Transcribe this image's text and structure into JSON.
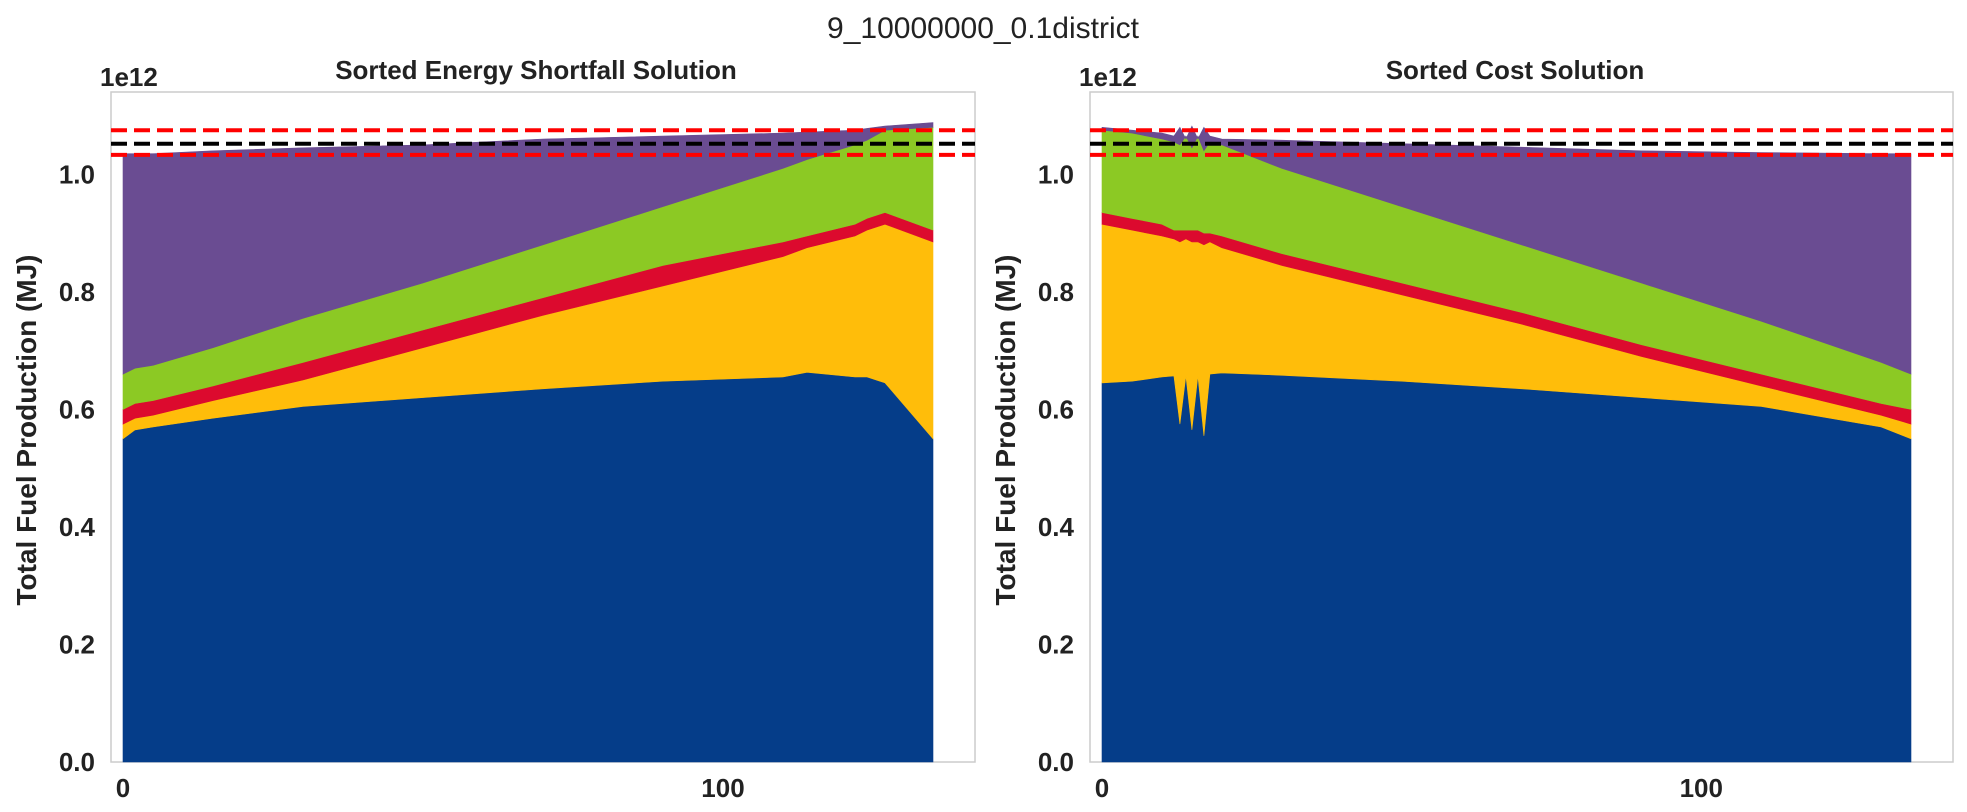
{
  "figure": {
    "suptitle": "9_10000000_0.1district"
  },
  "chart_data": [
    {
      "type": "area",
      "title": "Sorted Energy Shortfall Solution",
      "xlabel": "",
      "ylabel": "Total Fuel Production (MJ)",
      "y_offset_label": "1e12",
      "xlim": [
        -2,
        142
      ],
      "ylim": [
        0,
        1.14
      ],
      "xticks": [
        0,
        100
      ],
      "yticks": [
        0.0,
        0.2,
        0.4,
        0.6,
        0.8,
        1.0
      ],
      "ytick_labels": [
        "0.0",
        "0.2",
        "0.4",
        "0.6",
        "0.8",
        "1.0"
      ],
      "grid": false,
      "stack_colors": [
        "#053d89",
        "#ffbd0a",
        "#dc0a2e",
        "#8cc924",
        "#6a4c92"
      ],
      "x": [
        0,
        2,
        5,
        15,
        30,
        50,
        70,
        90,
        110,
        114,
        122,
        124,
        127,
        135
      ],
      "cumulative_series": [
        [
          0.55,
          0.565,
          0.57,
          0.585,
          0.605,
          0.62,
          0.635,
          0.648,
          0.655,
          0.663,
          0.655,
          0.655,
          0.645,
          0.55
        ],
        [
          0.575,
          0.585,
          0.59,
          0.615,
          0.65,
          0.705,
          0.76,
          0.81,
          0.86,
          0.875,
          0.895,
          0.905,
          0.915,
          0.885
        ],
        [
          0.6,
          0.61,
          0.615,
          0.64,
          0.68,
          0.735,
          0.79,
          0.845,
          0.885,
          0.895,
          0.915,
          0.925,
          0.935,
          0.905
        ],
        [
          0.66,
          0.67,
          0.675,
          0.705,
          0.755,
          0.815,
          0.88,
          0.945,
          1.01,
          1.025,
          1.05,
          1.058,
          1.075,
          1.08
        ],
        [
          1.035,
          1.035,
          1.035,
          1.04,
          1.045,
          1.05,
          1.06,
          1.065,
          1.07,
          1.072,
          1.075,
          1.078,
          1.082,
          1.088
        ]
      ],
      "hlines": [
        {
          "y": 1.075,
          "color": "#ff0000",
          "style": "dashed"
        },
        {
          "y": 1.052,
          "color": "#000000",
          "style": "dashed"
        },
        {
          "y": 1.033,
          "color": "#ff0000",
          "style": "dashed"
        }
      ]
    },
    {
      "type": "area",
      "title": "Sorted Cost Solution",
      "xlabel": "",
      "ylabel": "Total Fuel Production (MJ)",
      "y_offset_label": "1e12",
      "xlim": [
        -2,
        142
      ],
      "ylim": [
        0,
        1.14
      ],
      "xticks": [
        0,
        100
      ],
      "yticks": [
        0.0,
        0.2,
        0.4,
        0.6,
        0.8,
        1.0
      ],
      "ytick_labels": [
        "0.0",
        "0.2",
        "0.4",
        "0.6",
        "0.8",
        "1.0"
      ],
      "grid": false,
      "stack_colors": [
        "#053d89",
        "#ffbd0a",
        "#dc0a2e",
        "#8cc924",
        "#6a4c92"
      ],
      "x": [
        0,
        5,
        10,
        12,
        13,
        14,
        15,
        16,
        17,
        18,
        20,
        30,
        50,
        70,
        90,
        110,
        130,
        135
      ],
      "cumulative_series": [
        [
          0.645,
          0.648,
          0.655,
          0.657,
          0.575,
          0.657,
          0.565,
          0.657,
          0.555,
          0.66,
          0.662,
          0.658,
          0.648,
          0.635,
          0.62,
          0.605,
          0.57,
          0.55
        ],
        [
          0.915,
          0.905,
          0.895,
          0.89,
          0.885,
          0.89,
          0.885,
          0.885,
          0.88,
          0.885,
          0.875,
          0.845,
          0.795,
          0.745,
          0.69,
          0.64,
          0.59,
          0.575
        ],
        [
          0.935,
          0.925,
          0.915,
          0.905,
          0.905,
          0.905,
          0.905,
          0.905,
          0.9,
          0.9,
          0.895,
          0.865,
          0.815,
          0.765,
          0.71,
          0.66,
          0.61,
          0.6
        ],
        [
          1.075,
          1.07,
          1.06,
          1.055,
          1.05,
          1.065,
          1.045,
          1.065,
          1.04,
          1.055,
          1.05,
          1.01,
          0.945,
          0.88,
          0.815,
          0.75,
          0.68,
          0.66
        ],
        [
          1.08,
          1.075,
          1.07,
          1.065,
          1.08,
          1.06,
          1.082,
          1.06,
          1.08,
          1.065,
          1.06,
          1.058,
          1.052,
          1.046,
          1.04,
          1.037,
          1.035,
          1.035
        ]
      ],
      "hlines": [
        {
          "y": 1.075,
          "color": "#ff0000",
          "style": "dashed"
        },
        {
          "y": 1.052,
          "color": "#000000",
          "style": "dashed"
        },
        {
          "y": 1.033,
          "color": "#ff0000",
          "style": "dashed"
        }
      ]
    }
  ]
}
